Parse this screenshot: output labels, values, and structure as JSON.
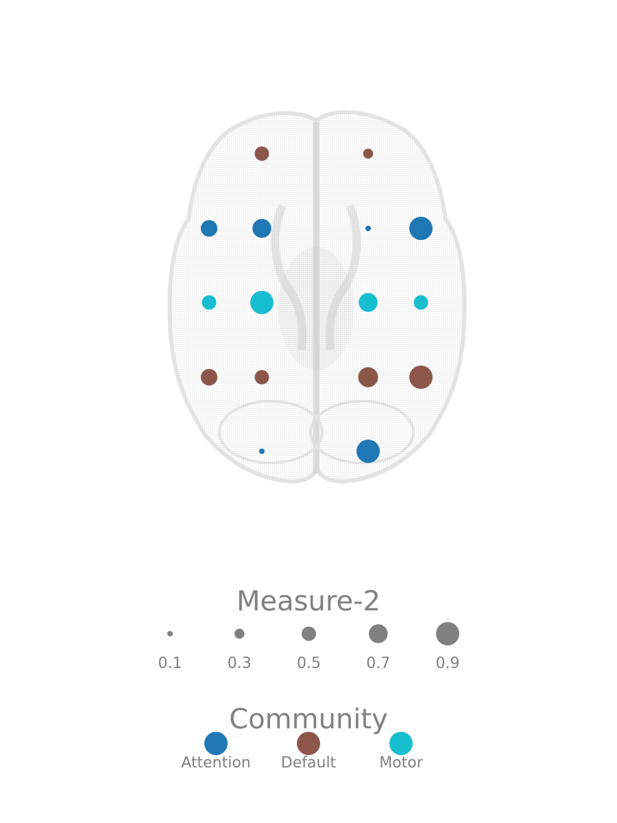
{
  "communities": [
    {
      "name": "Attention",
      "color": "#1f77b4"
    },
    {
      "name": "Default",
      "color": "#8c564b"
    },
    {
      "name": "Motor",
      "color": "#17becf"
    }
  ],
  "nodes": [
    {
      "row": 0,
      "col": 1,
      "community": "Default",
      "measure2": 0.5
    },
    {
      "row": 0,
      "col": 2,
      "community": "Default",
      "measure2": 0.3
    },
    {
      "row": 1,
      "col": 0,
      "community": "Attention",
      "measure2": 0.6
    },
    {
      "row": 1,
      "col": 1,
      "community": "Attention",
      "measure2": 0.7
    },
    {
      "row": 1,
      "col": 2,
      "community": "Attention",
      "measure2": 0.1
    },
    {
      "row": 1,
      "col": 3,
      "community": "Attention",
      "measure2": 0.9
    },
    {
      "row": 2,
      "col": 0,
      "community": "Motor",
      "measure2": 0.5
    },
    {
      "row": 2,
      "col": 1,
      "community": "Motor",
      "measure2": 0.9
    },
    {
      "row": 2,
      "col": 2,
      "community": "Motor",
      "measure2": 0.7
    },
    {
      "row": 2,
      "col": 3,
      "community": "Motor",
      "measure2": 0.5
    },
    {
      "row": 3,
      "col": 0,
      "community": "Default",
      "measure2": 0.6
    },
    {
      "row": 3,
      "col": 1,
      "community": "Default",
      "measure2": 0.5
    },
    {
      "row": 3,
      "col": 2,
      "community": "Default",
      "measure2": 0.75
    },
    {
      "row": 3,
      "col": 3,
      "community": "Default",
      "measure2": 0.9
    },
    {
      "row": 4,
      "col": 1,
      "community": "Attention",
      "measure2": 0.1
    },
    {
      "row": 4,
      "col": 2,
      "community": "Attention",
      "measure2": 0.9
    }
  ],
  "size_legend": {
    "title": "Measure-2",
    "values": [
      0.1,
      0.3,
      0.5,
      0.7,
      0.9
    ],
    "labels": [
      "0.1",
      "0.3",
      "0.5",
      "0.7",
      "0.9"
    ],
    "color": "#808080"
  },
  "community_legend": {
    "title": "Community",
    "labels": [
      "Attention",
      "Default",
      "Motor"
    ]
  }
}
